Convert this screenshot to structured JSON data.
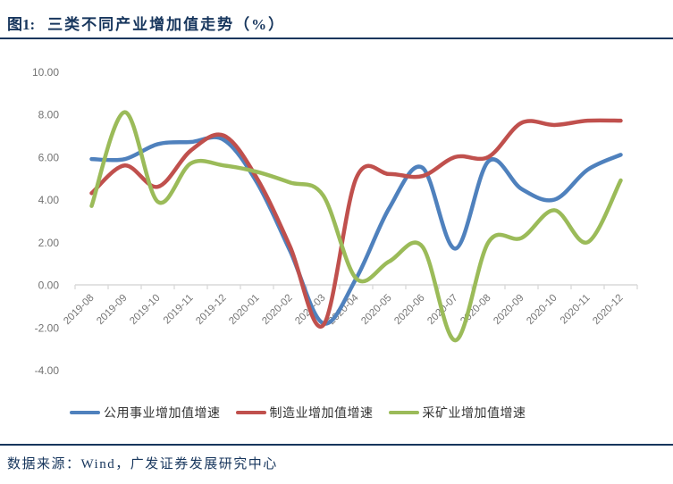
{
  "header": {
    "figure_label": "图1:",
    "title": "三类不同产业增加值走势（%）"
  },
  "footer": {
    "source": "数据来源：Wind，广发证券发展研究中心"
  },
  "chart_data": {
    "type": "line",
    "smoothed": true,
    "title": "三类不同产业增加值走势（%）",
    "xlabel": "",
    "ylabel": "",
    "ylim": [
      -4,
      10
    ],
    "grid": false,
    "legend_position": "bottom",
    "axis_color": "#D9D9D9",
    "label_color": "#767676",
    "categories": [
      "2019-08",
      "2019-09",
      "2019-10",
      "2019-11",
      "2019-12",
      "2020-01",
      "2020-02",
      "2020-03",
      "2020-04",
      "2020-05",
      "2020-06",
      "2020-07",
      "2020-08",
      "2020-09",
      "2020-10",
      "2020-11",
      "2020-12"
    ],
    "y_ticks": [
      "10.00",
      "8.00",
      "6.00",
      "4.00",
      "2.00",
      "0.00",
      "-2.00",
      "-4.00"
    ],
    "series": [
      {
        "name": "公用事业增加值增速",
        "color": "#4F81BD",
        "key": "utilities",
        "values": [
          5.9,
          5.9,
          6.6,
          6.7,
          6.8,
          4.8,
          1.6,
          -1.8,
          0.3,
          3.6,
          5.5,
          1.7,
          5.8,
          4.5,
          4.0,
          5.4,
          6.1
        ]
      },
      {
        "name": "制造业增加值增速",
        "color": "#C0504D",
        "key": "manufacturing",
        "values": [
          4.3,
          5.6,
          4.6,
          6.3,
          7.0,
          5.0,
          1.8,
          -1.9,
          5.0,
          5.2,
          5.1,
          6.0,
          6.0,
          7.6,
          7.5,
          7.7,
          7.7
        ]
      },
      {
        "name": "采矿业增加值增速",
        "color": "#9BBB59",
        "key": "mining",
        "values": [
          3.7,
          8.1,
          3.9,
          5.7,
          5.6,
          5.3,
          4.8,
          4.2,
          0.3,
          1.1,
          1.8,
          -2.6,
          2.0,
          2.2,
          3.5,
          2.0,
          4.9
        ]
      }
    ]
  }
}
